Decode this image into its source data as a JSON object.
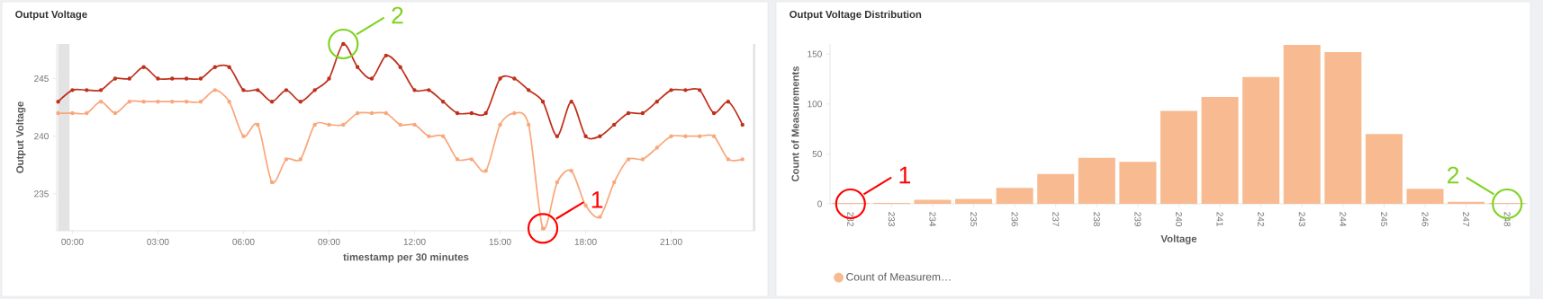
{
  "chart_data": [
    {
      "type": "line",
      "title": "Output Voltage",
      "xlabel": "timestamp per 30 minutes",
      "ylabel": "Output Voltage",
      "x": [
        -0.5,
        0,
        0.5,
        1,
        1.5,
        2,
        2.5,
        3,
        3.5,
        4,
        4.5,
        5,
        5.5,
        6,
        6.5,
        7,
        7.5,
        8,
        8.5,
        9,
        9.5,
        10,
        10.5,
        11,
        11.5,
        12,
        12.5,
        13,
        13.5,
        14,
        14.5,
        15,
        15.5,
        16,
        16.5,
        17,
        17.5,
        18,
        18.5,
        19,
        19.5,
        20,
        20.5,
        21,
        21.5,
        22,
        22.5,
        23,
        23.5
      ],
      "series": [
        {
          "color": "#c0301c",
          "values": [
            243,
            244,
            244,
            244,
            245,
            245,
            246,
            245,
            245,
            245,
            245,
            246,
            246,
            244,
            244,
            243,
            244,
            243,
            244,
            245,
            248,
            246,
            245,
            247,
            246,
            244,
            244,
            243,
            242,
            242,
            242,
            245,
            245,
            244,
            243,
            240,
            243,
            240,
            240,
            241,
            242,
            242,
            243,
            244,
            244,
            244,
            242,
            243,
            241
          ]
        },
        {
          "color": "#f9a77c",
          "values": [
            242,
            242,
            242,
            243,
            242,
            243,
            243,
            243,
            243,
            243,
            243,
            244,
            243,
            240,
            241,
            236,
            238,
            238,
            241,
            241,
            241,
            242,
            242,
            242,
            241,
            241,
            240,
            240,
            238,
            238,
            237,
            241,
            242,
            241,
            232,
            236,
            237,
            234,
            233,
            236,
            238,
            238,
            239,
            240,
            240,
            240,
            240,
            238,
            238
          ]
        }
      ],
      "xlim": [
        -0.55,
        23.95
      ],
      "ylim": [
        231.8,
        248
      ],
      "xticks": [
        {
          "value": 0,
          "label": "00:00"
        },
        {
          "value": 3,
          "label": "03:00"
        },
        {
          "value": 6,
          "label": "06:00"
        },
        {
          "value": 9,
          "label": "09:00"
        },
        {
          "value": 12,
          "label": "12:00"
        },
        {
          "value": 15,
          "label": "15:00"
        },
        {
          "value": 18,
          "label": "18:00"
        },
        {
          "value": 21,
          "label": "21:00"
        }
      ],
      "yticks": [
        235,
        240,
        245
      ],
      "marker": "circle",
      "bands": [
        {
          "axis": "x",
          "from": -0.5,
          "to": -0.1,
          "color": "#e3e3e3"
        },
        {
          "axis": "x",
          "from": 23.87,
          "to": 23.95,
          "color": "#e3e3e3"
        }
      ],
      "annotations": [
        {
          "text": "1",
          "x": 16.5,
          "y": 232
        },
        {
          "text": "2",
          "x": 9.5,
          "y": 248
        }
      ]
    },
    {
      "type": "bar",
      "title": "Output Voltage Distribution",
      "xlabel": "Voltage",
      "ylabel": "Count of Measurements",
      "categories": [
        "232",
        "233",
        "234",
        "235",
        "236",
        "237",
        "238",
        "239",
        "240",
        "241",
        "242",
        "243",
        "244",
        "245",
        "246",
        "247",
        "248"
      ],
      "series": [
        {
          "name": "Count of Measurem…",
          "color": "#f8bb91",
          "values": [
            1,
            1,
            4,
            5,
            16,
            30,
            46,
            42,
            93,
            107,
            127,
            159,
            152,
            70,
            15,
            2,
            1
          ]
        }
      ],
      "ylim": [
        0,
        160
      ],
      "yticks": [
        0,
        50,
        100,
        150
      ],
      "legend": "bottom left",
      "annotations": [
        {
          "text": "1",
          "x": "232",
          "y": 0
        },
        {
          "text": "2",
          "x": "248",
          "y": 0
        }
      ]
    }
  ]
}
